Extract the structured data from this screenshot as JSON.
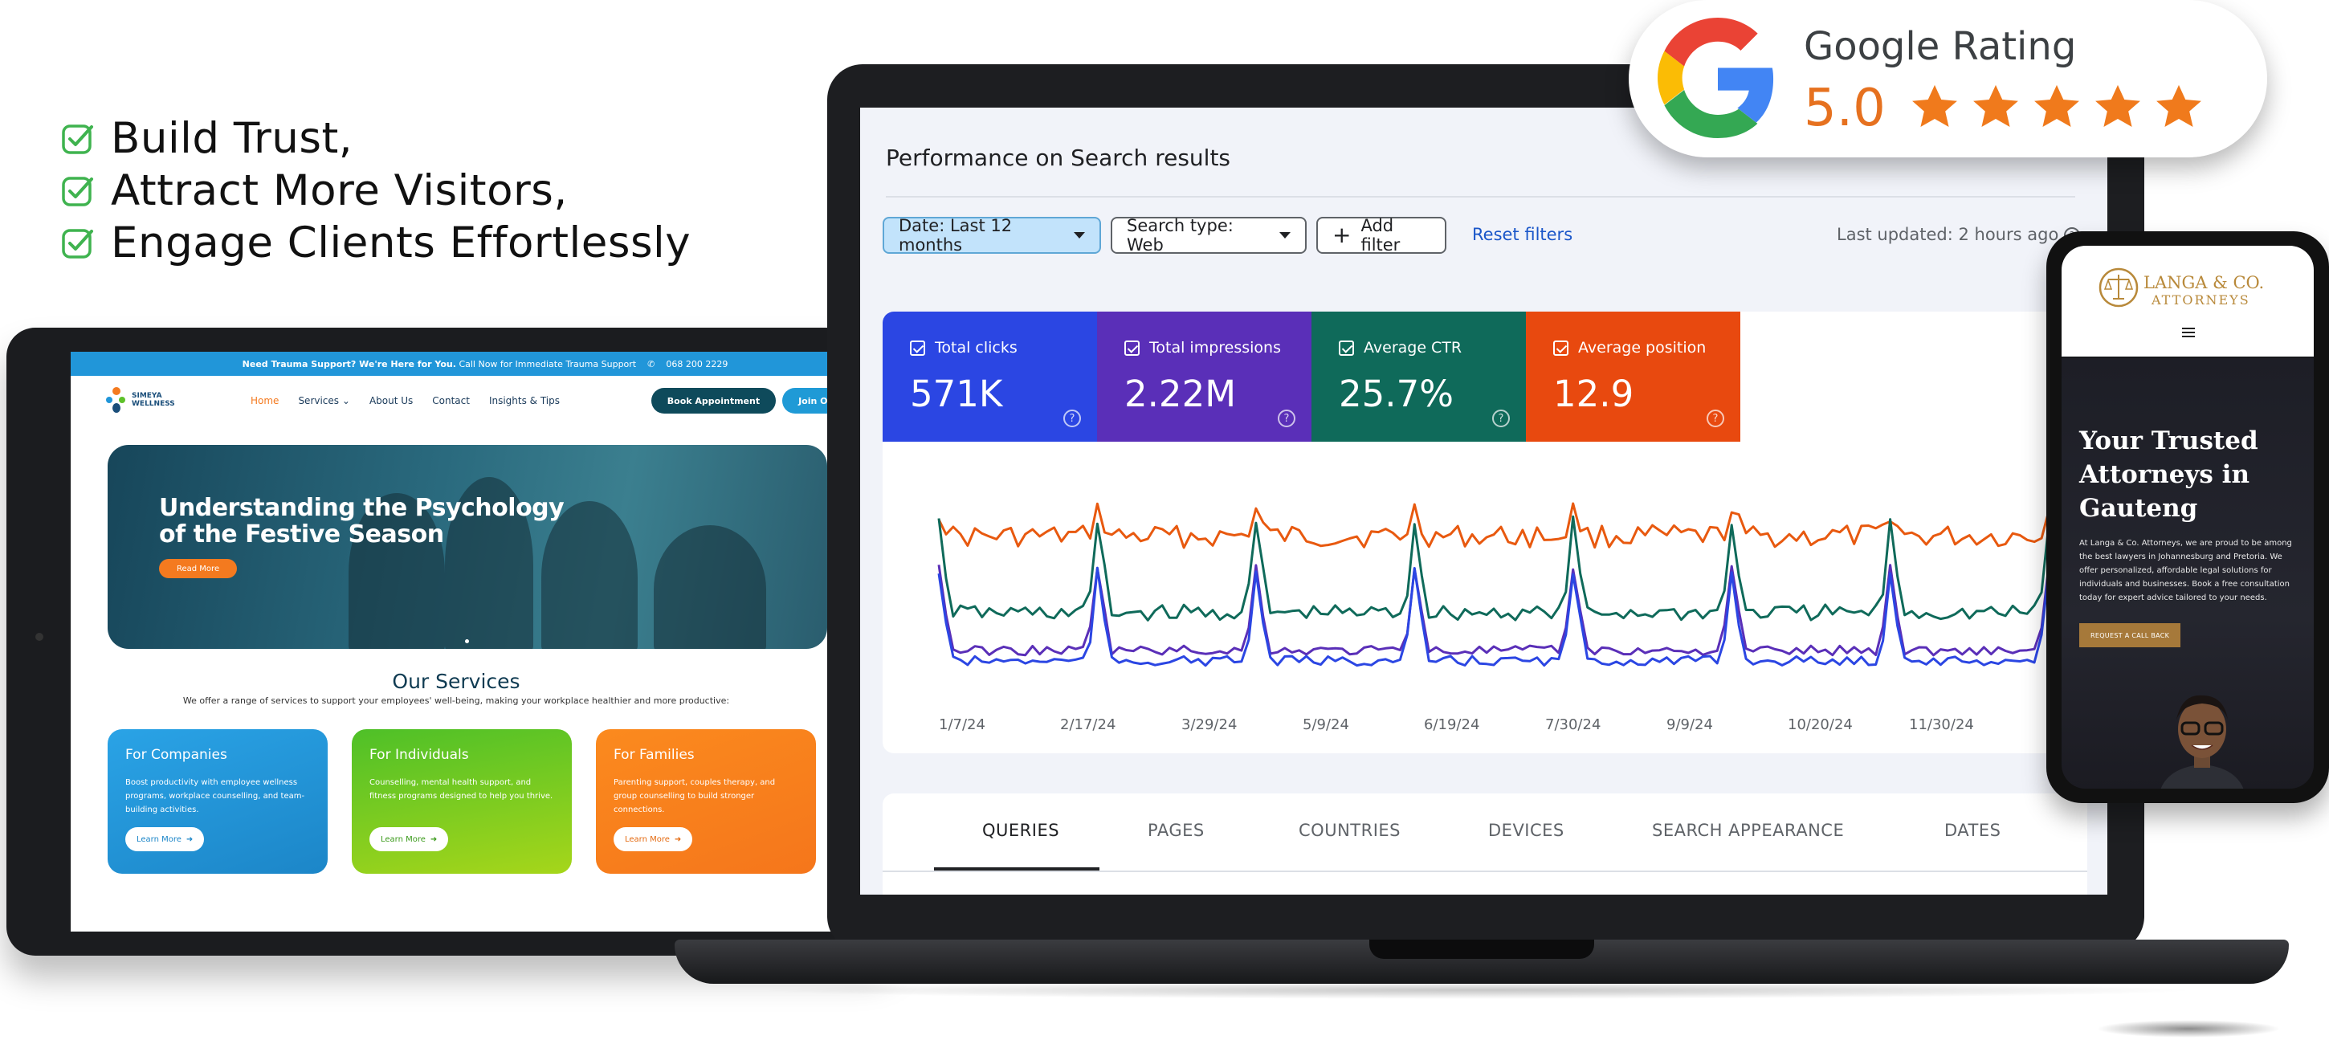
{
  "headline": {
    "items": [
      "Build Trust,",
      "Attract More Visitors,",
      "Engage Clients Effortlessly"
    ]
  },
  "tablet_site": {
    "topbar_bold": "Need Trauma Support? We're Here for You.",
    "topbar_text": "Call Now for Immediate Trauma Support",
    "topbar_phone": "068 200 2229",
    "logo_line1": "SIMEYA",
    "logo_line2": "WELLNESS",
    "nav": [
      "Home",
      "Services",
      "About Us",
      "Contact",
      "Insights & Tips"
    ],
    "book_label": "Book Appointment",
    "join_label": "Join Our Team",
    "hero_line1": "Understanding the Psychology",
    "hero_line2": "of the Festive Season",
    "hero_button": "Read More",
    "services_title": "Our Services",
    "services_sub": "We offer a range of services to support your employees' well-being, making your workplace healthier and more productive:",
    "cards": [
      {
        "title": "For Companies",
        "text": "Boost productivity with employee wellness programs, workplace counselling, and team-building activities.",
        "button": "Learn More",
        "color": "#2196d9"
      },
      {
        "title": "For Individuals",
        "text": "Counselling, mental health support, and fitness programs designed to help you thrive.",
        "button": "Learn More",
        "color": "#5ec12a"
      },
      {
        "title": "For Families",
        "text": "Parenting support, couples therapy, and group counselling to build stronger connections.",
        "button": "Learn More",
        "color": "#f7811d"
      }
    ]
  },
  "search_console": {
    "title": "Performance on Search results",
    "filters": {
      "date": "Date: Last 12 months",
      "type": "Search type: Web",
      "add": "Add filter",
      "reset": "Reset filters"
    },
    "updated": "Last updated: 2 hours ago",
    "metrics": [
      {
        "label": "Total clicks",
        "value": "571K",
        "color": "#2b46e3"
      },
      {
        "label": "Total impressions",
        "value": "2.22M",
        "color": "#5a2fb8"
      },
      {
        "label": "Average CTR",
        "value": "25.7%",
        "color": "#0f6a5a"
      },
      {
        "label": "Average position",
        "value": "12.9",
        "color": "#e8490f"
      }
    ],
    "tabs": [
      "QUERIES",
      "PAGES",
      "COUNTRIES",
      "DEVICES",
      "SEARCH APPEARANCE",
      "DATES"
    ],
    "active_tab": "QUERIES"
  },
  "chart_data": {
    "type": "line",
    "x_ticks": [
      "1/7/24",
      "2/17/24",
      "3/29/24",
      "5/9/24",
      "6/19/24",
      "7/30/24",
      "9/9/24",
      "10/20/24",
      "11/30/24"
    ],
    "series": [
      {
        "color": "#e8590f"
      },
      {
        "color": "#0f6a5a"
      },
      {
        "color": "#5a2fb8"
      },
      {
        "color": "#2b46e3"
      }
    ],
    "grid": false,
    "legend": "none"
  },
  "rating": {
    "title": "Google Rating",
    "value": "5.0",
    "stars": 5,
    "star_color": "#f07a1c"
  },
  "phone_site": {
    "brand": "LANGA & CO.",
    "sub": "ATTORNEYS",
    "heading_lines": [
      "Your Trusted",
      "Attorneys in",
      "Gauteng"
    ],
    "text": "At Langa & Co. Attorneys, we are proud to be among the best lawyers in Johannesburg and Pretoria. We offer personalized, affordable legal solutions for individuals and businesses. Book a free consultation today for expert advice tailored to your needs.",
    "cta": "REQUEST A CALL BACK"
  }
}
